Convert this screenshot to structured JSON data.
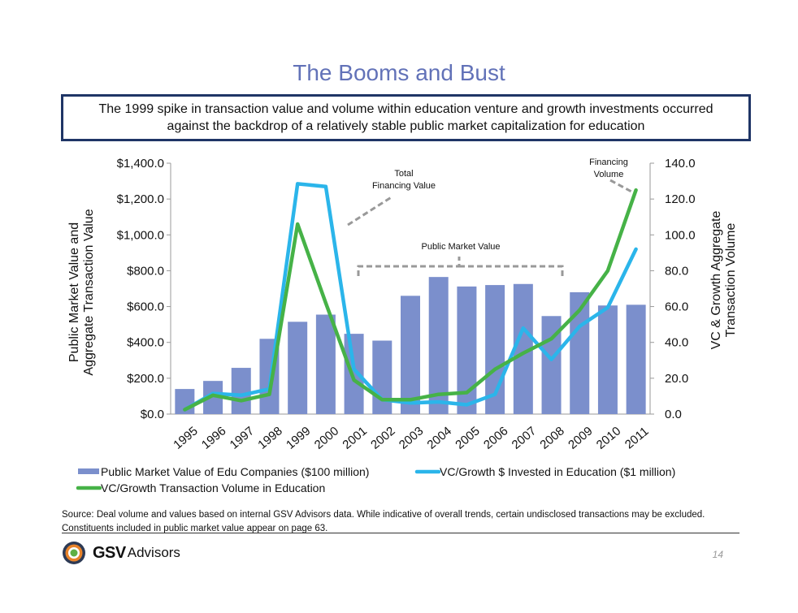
{
  "title": "The Booms and Bust",
  "subtitle": "The 1999 spike in transaction value and volume within education venture and growth investments occurred against the backdrop of a relatively stable public market capitalization for education",
  "chart_data": {
    "type": "bar",
    "categories": [
      "1995",
      "1996",
      "1997",
      "1998",
      "1999",
      "2000",
      "2001",
      "2002",
      "2003",
      "2004",
      "2005",
      "2006",
      "2007",
      "2008",
      "2009",
      "2010",
      "2011"
    ],
    "series": [
      {
        "name": "Public Market Value of Edu Companies ($100 million)",
        "kind": "bar",
        "axis": "left",
        "color": "#7b8fcc",
        "values": [
          140,
          185,
          258,
          420,
          515,
          555,
          448,
          410,
          660,
          765,
          712,
          720,
          726,
          547,
          680,
          606,
          610
        ]
      },
      {
        "name": "VC/Growth $ Invested in Education ($1 million)",
        "kind": "line",
        "axis": "left",
        "color": "#2bb5ea",
        "values": [
          25,
          115,
          105,
          140,
          1285,
          1270,
          250,
          80,
          62,
          68,
          52,
          110,
          480,
          305,
          490,
          595,
          920
        ]
      },
      {
        "name": "VC/Growth Transaction Volume in Education",
        "kind": "line",
        "axis": "right",
        "color": "#46b247",
        "values": [
          2.5,
          10.5,
          7.5,
          11,
          106,
          62,
          19,
          8,
          8,
          11,
          12,
          25,
          34,
          42,
          58,
          80,
          125
        ]
      }
    ],
    "y_left": {
      "label_lines": [
        "Public Market Value and",
        "Aggregate Transaction Value"
      ],
      "range": [
        0,
        1400
      ],
      "ticks": [
        0,
        200,
        400,
        600,
        800,
        1000,
        1200,
        1400
      ],
      "tick_labels": [
        "$0.0",
        "$200.0",
        "$400.0",
        "$600.0",
        "$800.0",
        "$1,000.0",
        "$1,200.0",
        "$1,400.0"
      ]
    },
    "y_right": {
      "label_lines": [
        "VC & Growth Aggregate",
        "Transaction Volume"
      ],
      "range": [
        0,
        140
      ],
      "ticks": [
        0,
        20,
        40,
        60,
        80,
        100,
        120,
        140
      ],
      "tick_labels": [
        "0.0",
        "20.0",
        "40.0",
        "60.0",
        "80.0",
        "100.0",
        "120.0",
        "140.0"
      ]
    },
    "annotations": [
      {
        "text_lines": [
          "Total",
          "Financing Value"
        ]
      },
      {
        "text_lines": [
          "Public Market Value"
        ]
      },
      {
        "text_lines": [
          "Financing",
          "Volume"
        ]
      }
    ],
    "grid": false,
    "legend_position": "bottom"
  },
  "source_note": "Source: Deal volume and values based on internal GSV Advisors data.  While indicative of overall trends, certain undisclosed transactions may be excluded. Constituents included in public market value appear on page 63.",
  "logo": {
    "bold": "GSV",
    "regular": "Advisors"
  },
  "page_number": "14"
}
